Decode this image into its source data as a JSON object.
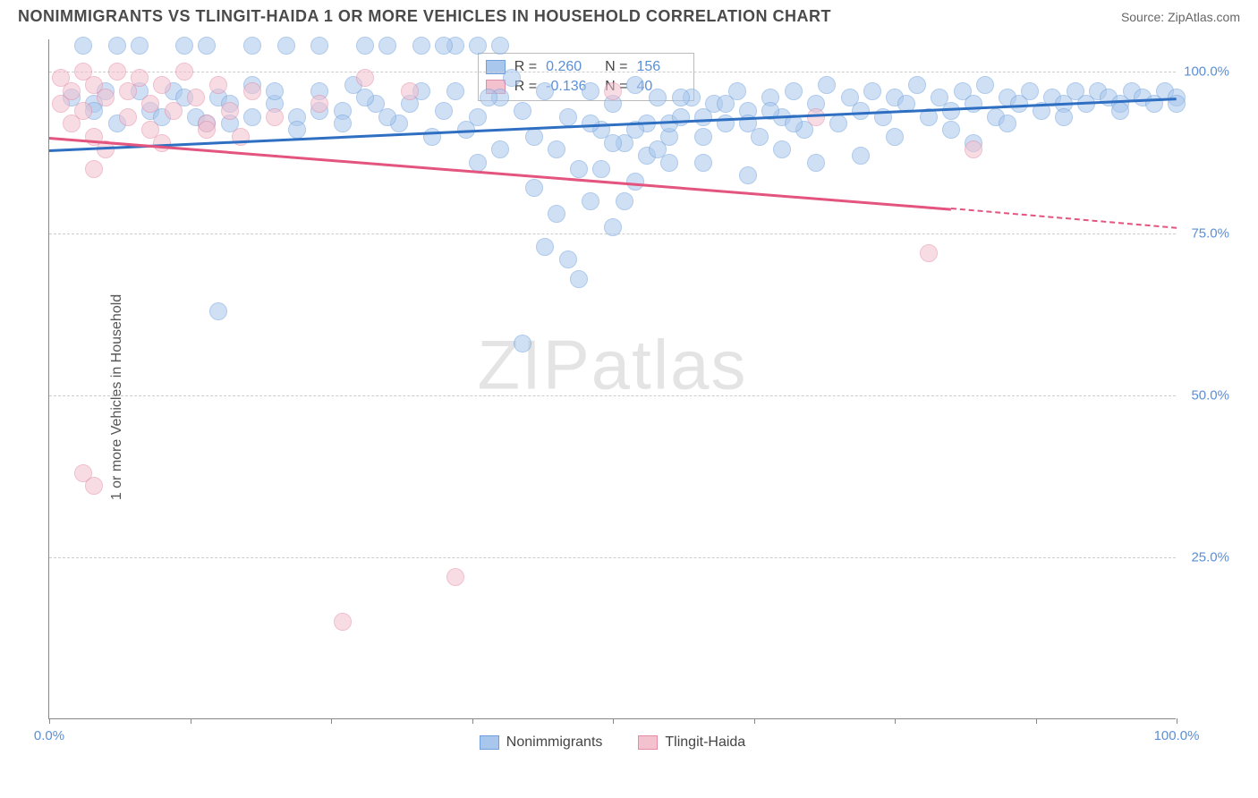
{
  "header": {
    "title": "NONIMMIGRANTS VS TLINGIT-HAIDA 1 OR MORE VEHICLES IN HOUSEHOLD CORRELATION CHART",
    "source_prefix": "Source: ",
    "source_link": "ZipAtlas.com"
  },
  "chart": {
    "type": "scatter",
    "ylabel": "1 or more Vehicles in Household",
    "background_color": "#ffffff",
    "grid_color": "#cccccc",
    "axis_color": "#888888",
    "label_color": "#5b8fd6",
    "xlim": [
      0,
      100
    ],
    "ylim": [
      0,
      105
    ],
    "xticks": [
      0,
      12.5,
      25,
      37.5,
      50,
      62.5,
      75,
      87.5,
      100
    ],
    "xtick_labels": {
      "0": "0.0%",
      "100": "100.0%"
    },
    "yticks": [
      25,
      50,
      75,
      100
    ],
    "ytick_labels": {
      "25": "25.0%",
      "50": "50.0%",
      "75": "75.0%",
      "100": "100.0%"
    },
    "watermark": "ZIPatlas",
    "marker_radius": 10,
    "marker_stroke_width": 1.5,
    "series": [
      {
        "name": "Nonimmigrants",
        "fill_color": "#a9c7ed",
        "stroke_color": "#6fa0db",
        "fill_opacity": 0.55,
        "r_value": "0.260",
        "n_value": "156",
        "trend": {
          "x0": 0,
          "y0": 88,
          "x1": 100,
          "y1": 96,
          "color": "#2f6fc2",
          "width": 3
        },
        "points": [
          [
            3,
            104
          ],
          [
            6,
            104
          ],
          [
            8,
            104
          ],
          [
            12,
            104
          ],
          [
            14,
            104
          ],
          [
            18,
            104
          ],
          [
            21,
            104
          ],
          [
            24,
            104
          ],
          [
            28,
            104
          ],
          [
            30,
            104
          ],
          [
            33,
            104
          ],
          [
            36,
            104
          ],
          [
            38,
            104
          ],
          [
            2,
            96
          ],
          [
            4,
            95
          ],
          [
            5,
            97
          ],
          [
            9,
            94
          ],
          [
            11,
            97
          ],
          [
            13,
            93
          ],
          [
            15,
            96
          ],
          [
            16,
            92
          ],
          [
            18,
            98
          ],
          [
            20,
            95
          ],
          [
            22,
            93
          ],
          [
            24,
            97
          ],
          [
            26,
            94
          ],
          [
            27,
            98
          ],
          [
            29,
            95
          ],
          [
            31,
            92
          ],
          [
            33,
            97
          ],
          [
            35,
            94
          ],
          [
            36,
            97
          ],
          [
            38,
            93
          ],
          [
            40,
            96
          ],
          [
            41,
            99
          ],
          [
            42,
            94
          ],
          [
            43,
            90
          ],
          [
            44,
            97
          ],
          [
            45,
            88
          ],
          [
            46,
            93
          ],
          [
            47,
            85
          ],
          [
            48,
            97
          ],
          [
            49,
            91
          ],
          [
            50,
            95
          ],
          [
            51,
            89
          ],
          [
            52,
            98
          ],
          [
            53,
            92
          ],
          [
            54,
            96
          ],
          [
            55,
            90
          ],
          [
            43,
            82
          ],
          [
            45,
            78
          ],
          [
            46,
            71
          ],
          [
            48,
            80
          ],
          [
            50,
            76
          ],
          [
            52,
            83
          ],
          [
            42,
            58
          ],
          [
            38,
            86
          ],
          [
            40,
            88
          ],
          [
            44,
            73
          ],
          [
            47,
            68
          ],
          [
            49,
            85
          ],
          [
            51,
            80
          ],
          [
            53,
            87
          ],
          [
            55,
            92
          ],
          [
            56,
            93
          ],
          [
            57,
            96
          ],
          [
            58,
            90
          ],
          [
            59,
            95
          ],
          [
            60,
            92
          ],
          [
            61,
            97
          ],
          [
            62,
            94
          ],
          [
            63,
            90
          ],
          [
            64,
            96
          ],
          [
            65,
            93
          ],
          [
            66,
            97
          ],
          [
            67,
            91
          ],
          [
            68,
            95
          ],
          [
            69,
            98
          ],
          [
            70,
            92
          ],
          [
            71,
            96
          ],
          [
            72,
            94
          ],
          [
            73,
            97
          ],
          [
            74,
            93
          ],
          [
            75,
            96
          ],
          [
            76,
            95
          ],
          [
            77,
            98
          ],
          [
            78,
            93
          ],
          [
            79,
            96
          ],
          [
            80,
            94
          ],
          [
            81,
            97
          ],
          [
            82,
            95
          ],
          [
            83,
            98
          ],
          [
            84,
            93
          ],
          [
            85,
            96
          ],
          [
            86,
            95
          ],
          [
            87,
            97
          ],
          [
            88,
            94
          ],
          [
            89,
            96
          ],
          [
            90,
            95
          ],
          [
            91,
            97
          ],
          [
            92,
            95
          ],
          [
            93,
            97
          ],
          [
            94,
            96
          ],
          [
            95,
            95
          ],
          [
            96,
            97
          ],
          [
            97,
            96
          ],
          [
            98,
            95
          ],
          [
            99,
            97
          ],
          [
            100,
            96
          ],
          [
            100,
            95
          ],
          [
            82,
            89
          ],
          [
            72,
            87
          ],
          [
            65,
            88
          ],
          [
            58,
            86
          ],
          [
            15,
            63
          ],
          [
            35,
            104
          ],
          [
            40,
            104
          ],
          [
            55,
            86
          ],
          [
            62,
            84
          ],
          [
            68,
            86
          ],
          [
            75,
            90
          ],
          [
            80,
            91
          ],
          [
            85,
            92
          ],
          [
            90,
            93
          ],
          [
            95,
            94
          ],
          [
            48,
            92
          ],
          [
            50,
            89
          ],
          [
            52,
            91
          ],
          [
            54,
            88
          ],
          [
            56,
            96
          ],
          [
            58,
            93
          ],
          [
            60,
            95
          ],
          [
            62,
            92
          ],
          [
            64,
            94
          ],
          [
            66,
            92
          ],
          [
            39,
            96
          ],
          [
            37,
            91
          ],
          [
            34,
            90
          ],
          [
            32,
            95
          ],
          [
            30,
            93
          ],
          [
            28,
            96
          ],
          [
            26,
            92
          ],
          [
            24,
            94
          ],
          [
            22,
            91
          ],
          [
            20,
            97
          ],
          [
            18,
            93
          ],
          [
            16,
            95
          ],
          [
            14,
            92
          ],
          [
            12,
            96
          ],
          [
            10,
            93
          ],
          [
            8,
            97
          ],
          [
            6,
            92
          ],
          [
            4,
            94
          ]
        ]
      },
      {
        "name": "Tlingit-Haida",
        "fill_color": "#f4c1cf",
        "stroke_color": "#e48ba6",
        "fill_opacity": 0.55,
        "r_value": "-0.136",
        "n_value": "40",
        "trend": {
          "x0": 0,
          "y0": 90,
          "x1": 80,
          "y1": 79,
          "color": "#e3547f",
          "width": 2.5,
          "dash_x0": 80,
          "dash_y0": 79,
          "dash_x1": 100,
          "dash_y1": 76
        },
        "points": [
          [
            1,
            99
          ],
          [
            1,
            95
          ],
          [
            2,
            97
          ],
          [
            2,
            92
          ],
          [
            3,
            100
          ],
          [
            3,
            94
          ],
          [
            4,
            98
          ],
          [
            4,
            90
          ],
          [
            5,
            96
          ],
          [
            5,
            88
          ],
          [
            6,
            100
          ],
          [
            7,
            97
          ],
          [
            7,
            93
          ],
          [
            8,
            99
          ],
          [
            9,
            95
          ],
          [
            9,
            91
          ],
          [
            10,
            98
          ],
          [
            11,
            94
          ],
          [
            12,
            100
          ],
          [
            13,
            96
          ],
          [
            14,
            92
          ],
          [
            15,
            98
          ],
          [
            16,
            94
          ],
          [
            17,
            90
          ],
          [
            18,
            97
          ],
          [
            20,
            93
          ],
          [
            24,
            95
          ],
          [
            28,
            99
          ],
          [
            32,
            97
          ],
          [
            4,
            85
          ],
          [
            10,
            89
          ],
          [
            14,
            91
          ],
          [
            3,
            38
          ],
          [
            4,
            36
          ],
          [
            26,
            15
          ],
          [
            36,
            22
          ],
          [
            50,
            97
          ],
          [
            68,
            93
          ],
          [
            78,
            72
          ],
          [
            82,
            88
          ]
        ]
      }
    ],
    "stats_box": {
      "left_pct": 38,
      "top_pct": 2
    },
    "bottom_legend": [
      {
        "label": "Nonimmigrants",
        "fill": "#a9c7ed",
        "stroke": "#6fa0db"
      },
      {
        "label": "Tlingit-Haida",
        "fill": "#f4c1cf",
        "stroke": "#e48ba6"
      }
    ]
  }
}
